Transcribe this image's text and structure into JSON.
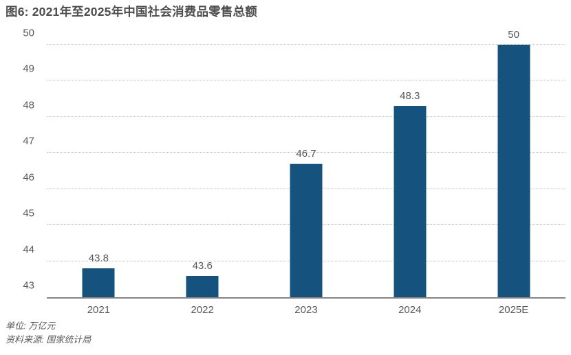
{
  "title": "图6: 2021年至2025年中国社会消费品零售总额",
  "footer": {
    "unit": "单位: 万亿元",
    "source": "资料来源: 国家统计局"
  },
  "colors": {
    "bar": "#15527E",
    "title_text": "#4d4d4d",
    "axis_text": "#595959",
    "gridline": "#c3c3c3",
    "baseline": "#858585"
  },
  "chart_data": {
    "type": "bar",
    "title": "图6: 2021年至2025年中国社会消费品零售总额",
    "categories": [
      "2021",
      "2022",
      "2023",
      "2024",
      "2025E"
    ],
    "values": [
      43.8,
      43.6,
      46.7,
      48.3,
      50
    ],
    "value_labels": [
      "43.8",
      "43.6",
      "46.7",
      "48.3",
      "50"
    ],
    "xlabel": "",
    "ylabel": "",
    "ylim": [
      43,
      50
    ],
    "yticks": [
      43,
      44,
      45,
      46,
      47,
      48,
      49,
      50
    ],
    "grid": "horizontal-dotted",
    "legend": "none"
  }
}
